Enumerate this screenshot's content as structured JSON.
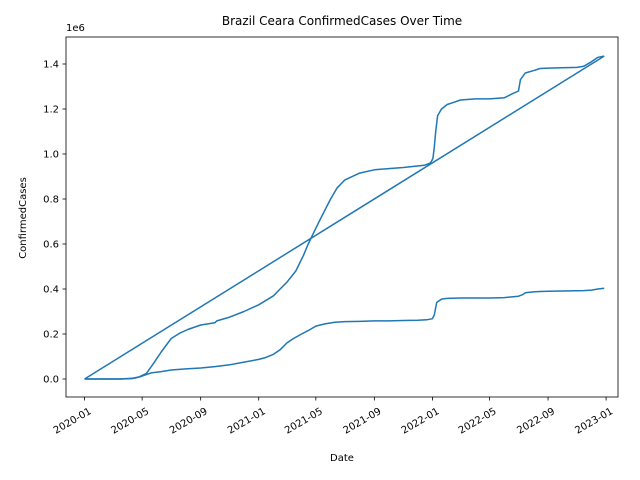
{
  "chart_data": {
    "type": "line",
    "title": "Brazil Ceara ConfirmedCases Over Time",
    "xlabel": "Date",
    "ylabel": "ConfirmedCases",
    "y_offset_label": "1e6",
    "xlim": [
      "2019-11-23",
      "2023-01-26"
    ],
    "ylim": [
      -0.08,
      1.52
    ],
    "y_ticks": [
      0.0,
      0.2,
      0.4,
      0.6,
      0.8,
      1.0,
      1.2,
      1.4
    ],
    "y_tick_labels": [
      "0.0",
      "0.2",
      "0.4",
      "0.6",
      "0.8",
      "1.0",
      "1.2",
      "1.4"
    ],
    "x_ticks": [
      "2020-01-01",
      "2020-05-01",
      "2020-09-01",
      "2021-01-01",
      "2021-05-01",
      "2021-09-01",
      "2022-01-01",
      "2022-05-01",
      "2022-09-01",
      "2023-01-01"
    ],
    "x_tick_labels": [
      "2020-01",
      "2020-05",
      "2020-09",
      "2021-01",
      "2021-05",
      "2021-09",
      "2022-01",
      "2022-05",
      "2022-09",
      "2023-01"
    ],
    "grid": false,
    "line_color": "#1f77b4",
    "series": [
      {
        "segments": [
          {
            "x": [
              "2020-01-01",
              "2020-03-15",
              "2020-04-10",
              "2020-04-25",
              "2020-05-10",
              "2020-05-25",
              "2020-06-10",
              "2020-07-01",
              "2020-07-20",
              "2020-08-05",
              "2020-09-01",
              "2020-10-01",
              "2020-10-05",
              "2020-11-01",
              "2020-12-01",
              "2021-01-01",
              "2021-02-01",
              "2021-02-15",
              "2021-03-01",
              "2021-03-20",
              "2021-04-05",
              "2021-04-15",
              "2021-05-01",
              "2021-05-15",
              "2021-06-01",
              "2021-06-15",
              "2021-07-01",
              "2021-08-01",
              "2021-09-01",
              "2021-10-01",
              "2021-11-01",
              "2021-12-15",
              "2021-12-28",
              "2022-01-02",
              "2022-01-05",
              "2022-01-08",
              "2022-01-12",
              "2022-01-20",
              "2022-02-01",
              "2022-02-15",
              "2022-03-01",
              "2022-04-01",
              "2022-05-01",
              "2022-06-01",
              "2022-06-20",
              "2022-07-01",
              "2022-07-05",
              "2022-07-15",
              "2022-08-01",
              "2022-08-15",
              "2022-09-01",
              "2022-11-01",
              "2022-11-15",
              "2022-12-01",
              "2022-12-15",
              "2022-12-28"
            ],
            "y": [
              0.0,
              0.0,
              0.003,
              0.01,
              0.025,
              0.07,
              0.12,
              0.18,
              0.205,
              0.22,
              0.24,
              0.25,
              0.258,
              0.275,
              0.3,
              0.33,
              0.37,
              0.4,
              0.43,
              0.48,
              0.55,
              0.6,
              0.67,
              0.73,
              0.8,
              0.85,
              0.885,
              0.915,
              0.93,
              0.935,
              0.94,
              0.95,
              0.96,
              0.98,
              1.03,
              1.1,
              1.17,
              1.2,
              1.22,
              1.23,
              1.24,
              1.245,
              1.245,
              1.25,
              1.27,
              1.28,
              1.33,
              1.36,
              1.37,
              1.38,
              1.382,
              1.385,
              1.39,
              1.41,
              1.43,
              1.435
            ]
          },
          {
            "x": [
              "2022-12-28",
              "2020-01-01"
            ],
            "y": [
              1.435,
              0.0
            ]
          },
          {
            "x": [
              "2020-01-01",
              "2020-03-15",
              "2020-04-10",
              "2020-04-20",
              "2020-05-01",
              "2020-05-10",
              "2020-05-20",
              "2020-06-10",
              "2020-07-01",
              "2020-08-01",
              "2020-09-01",
              "2020-10-01",
              "2020-11-01",
              "2020-12-01",
              "2021-01-01",
              "2021-01-15",
              "2021-02-01",
              "2021-02-15",
              "2021-03-01",
              "2021-03-15",
              "2021-04-01",
              "2021-04-15",
              "2021-05-01",
              "2021-05-20",
              "2021-06-10",
              "2021-07-01",
              "2021-08-01",
              "2021-09-01",
              "2021-10-01",
              "2021-11-01",
              "2021-12-01",
              "2021-12-20",
              "2022-01-01",
              "2022-01-05",
              "2022-01-10",
              "2022-01-20",
              "2022-02-01",
              "2022-03-01",
              "2022-05-01",
              "2022-06-01",
              "2022-07-01",
              "2022-07-10",
              "2022-07-15",
              "2022-08-01",
              "2022-08-15",
              "2022-09-01",
              "2022-11-01",
              "2022-11-15",
              "2022-12-01",
              "2022-12-15",
              "2022-12-28"
            ],
            "y": [
              0.0,
              0.0,
              0.002,
              0.006,
              0.013,
              0.02,
              0.027,
              0.033,
              0.04,
              0.045,
              0.049,
              0.055,
              0.063,
              0.075,
              0.087,
              0.095,
              0.11,
              0.13,
              0.16,
              0.18,
              0.2,
              0.215,
              0.235,
              0.245,
              0.252,
              0.255,
              0.256,
              0.258,
              0.258,
              0.26,
              0.261,
              0.263,
              0.268,
              0.285,
              0.34,
              0.355,
              0.358,
              0.36,
              0.36,
              0.362,
              0.368,
              0.375,
              0.383,
              0.387,
              0.389,
              0.39,
              0.392,
              0.393,
              0.395,
              0.4,
              0.403
            ]
          }
        ]
      }
    ]
  }
}
